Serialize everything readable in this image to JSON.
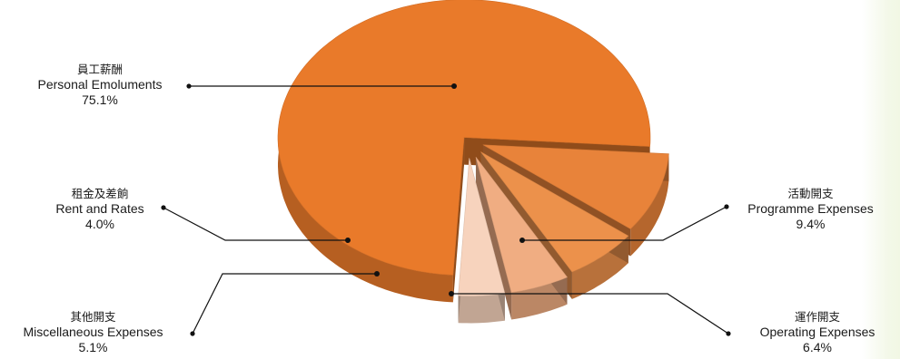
{
  "chart_data": {
    "type": "pie",
    "title": "",
    "slices": [
      {
        "label_zh": "員工薪酬",
        "label_en": "Personal Emoluments",
        "value": 75.1,
        "value_text": "75.1%",
        "color": "#e97a2a"
      },
      {
        "label_zh": "活動開支",
        "label_en": "Programme Expenses",
        "value": 9.4,
        "value_text": "9.4%",
        "color": "#e8833a"
      },
      {
        "label_zh": "運作開支",
        "label_en": "Operating Expenses",
        "value": 6.4,
        "value_text": "6.4%",
        "color": "#ec914b"
      },
      {
        "label_zh": "其他開支",
        "label_en": "Miscellaneous Expenses",
        "value": 5.1,
        "value_text": "5.1%",
        "color": "#f0ad82"
      },
      {
        "label_zh": "租金及差餉",
        "label_en": "Rent and Rates",
        "value": 4.0,
        "value_text": "4.0%",
        "color": "#f7d3bd"
      }
    ],
    "legend": "callout-labels"
  }
}
